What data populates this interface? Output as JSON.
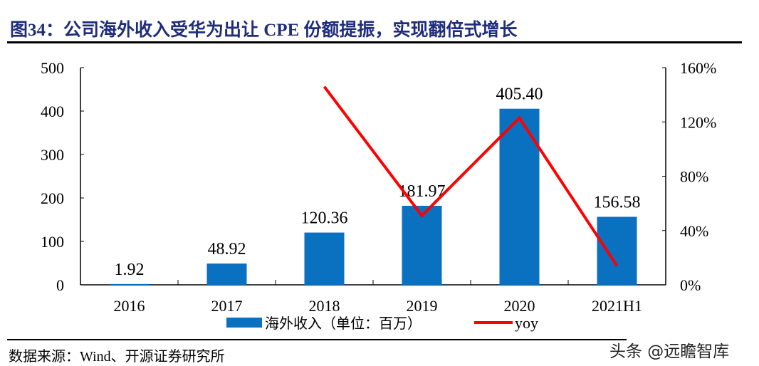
{
  "title": "图34：公司海外收入受华为出让 CPE 份额提振，实现翻倍式增长",
  "source": "数据来源：Wind、开源证券研究所",
  "watermark": "头条 @远瞻智库",
  "chart_data": {
    "type": "bar+line",
    "categories": [
      "2016",
      "2017",
      "2018",
      "2019",
      "2020",
      "2021H1"
    ],
    "series": [
      {
        "name": "海外收入（单位：百万）",
        "type": "bar",
        "axis": "left",
        "color": "#0a70c0",
        "values": [
          1.92,
          48.92,
          120.36,
          181.97,
          405.4,
          156.58
        ],
        "labels": [
          "1.92",
          "48.92",
          "120.36",
          "181.97",
          "405.40",
          "156.58"
        ]
      },
      {
        "name": "yoy",
        "type": "line",
        "axis": "right",
        "color": "#ff0000",
        "values": [
          null,
          null,
          146,
          51,
          123,
          14
        ]
      }
    ],
    "left_axis": {
      "ylim": [
        0,
        500
      ],
      "ticks": [
        "0",
        "100",
        "200",
        "300",
        "400",
        "500"
      ]
    },
    "right_axis": {
      "ylim": [
        0,
        160
      ],
      "unit": "%",
      "ticks": [
        "0%",
        "40%",
        "80%",
        "120%",
        "160%"
      ]
    },
    "grid": false,
    "legend": "bottom"
  }
}
